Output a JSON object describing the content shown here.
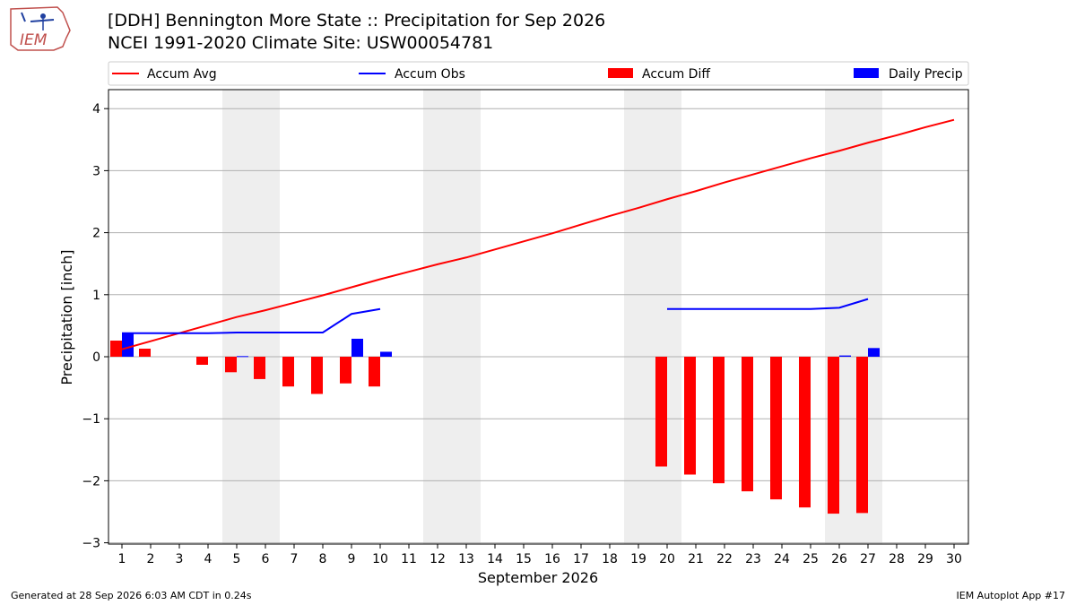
{
  "header": {
    "title_line1": "[DDH] Bennington More State :: Precipitation for Sep 2026",
    "title_line2": "NCEI 1991-2020 Climate Site: USW00054781",
    "logo_text": "IEM"
  },
  "footer": {
    "generated": "Generated at 28 Sep 2026 6:03 AM CDT in 0.24s",
    "app": "IEM Autoplot App #17"
  },
  "chart_data": {
    "type": "bar",
    "xlabel": "September 2026",
    "ylabel": "Precipitation [inch]",
    "ylim": [
      -3,
      4
    ],
    "xlim": [
      1,
      30
    ],
    "grid": "horizontal",
    "legend_placement": "top",
    "x": [
      1,
      2,
      3,
      4,
      5,
      6,
      7,
      8,
      9,
      10,
      11,
      12,
      13,
      14,
      15,
      16,
      17,
      18,
      19,
      20,
      21,
      22,
      23,
      24,
      25,
      26,
      27,
      28,
      29,
      30
    ],
    "xtick_labels": [
      "1",
      "2",
      "3",
      "4",
      "5",
      "6",
      "7",
      "8",
      "9",
      "10",
      "11",
      "12",
      "13",
      "14",
      "15",
      "16",
      "17",
      "18",
      "19",
      "20",
      "21",
      "22",
      "23",
      "24",
      "25",
      "26",
      "27",
      "28",
      "29",
      "30"
    ],
    "ytick_labels": [
      "−3",
      "−2",
      "−1",
      "0",
      "1",
      "2",
      "3",
      "4"
    ],
    "yticks": [
      -3,
      -2,
      -1,
      0,
      1,
      2,
      3,
      4
    ],
    "weekend_days": [
      5,
      6,
      12,
      13,
      19,
      20,
      26,
      27
    ],
    "series": [
      {
        "name": "Accum Avg",
        "kind": "line",
        "color": "#ff0000",
        "x": [
          1,
          2,
          3,
          4,
          5,
          6,
          7,
          8,
          9,
          10,
          11,
          12,
          13,
          14,
          15,
          16,
          17,
          18,
          19,
          20,
          21,
          22,
          23,
          24,
          25,
          26,
          27,
          28,
          29,
          30
        ],
        "values": [
          0.12,
          0.25,
          0.38,
          0.51,
          0.64,
          0.75,
          0.87,
          0.99,
          1.12,
          1.25,
          1.37,
          1.49,
          1.6,
          1.73,
          1.86,
          1.99,
          2.13,
          2.27,
          2.4,
          2.54,
          2.67,
          2.81,
          2.94,
          3.07,
          3.2,
          3.32,
          3.45,
          3.57,
          3.7,
          3.82
        ]
      },
      {
        "name": "Accum Obs",
        "kind": "line",
        "color": "#0000ff",
        "x": [
          1,
          2,
          3,
          4,
          5,
          6,
          7,
          8,
          9,
          10,
          null,
          20,
          21,
          22,
          23,
          24,
          25,
          26,
          27
        ],
        "values": [
          0.38,
          0.38,
          0.38,
          0.38,
          0.39,
          0.39,
          0.39,
          0.39,
          0.69,
          0.77,
          null,
          0.77,
          0.77,
          0.77,
          0.77,
          0.77,
          0.77,
          0.79,
          0.93
        ]
      },
      {
        "name": "Accum Diff",
        "kind": "bar",
        "color": "#ff0000",
        "x": [
          1,
          2,
          3,
          4,
          5,
          6,
          7,
          8,
          9,
          10,
          20,
          21,
          22,
          23,
          24,
          25,
          26,
          27
        ],
        "values": [
          0.26,
          0.13,
          0.0,
          -0.13,
          -0.25,
          -0.36,
          -0.48,
          -0.6,
          -0.43,
          -0.48,
          -1.77,
          -1.9,
          -2.04,
          -2.17,
          -2.3,
          -2.43,
          -2.53,
          -2.52
        ]
      },
      {
        "name": "Daily Precip",
        "kind": "bar",
        "color": "#0000ff",
        "x": [
          1,
          2,
          3,
          4,
          5,
          6,
          7,
          8,
          9,
          10,
          20,
          21,
          22,
          23,
          24,
          25,
          26,
          27
        ],
        "values": [
          0.38,
          0.0,
          0.0,
          0.0,
          0.01,
          0.0,
          0.0,
          0.0,
          0.29,
          0.08,
          0.0,
          0.0,
          0.0,
          0.0,
          0.0,
          0.0,
          0.02,
          0.14
        ]
      }
    ]
  }
}
